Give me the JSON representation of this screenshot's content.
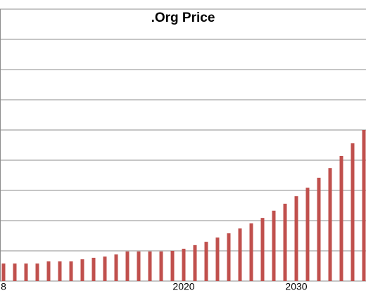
{
  "chart_data": {
    "type": "bar",
    "title": ".Org Price",
    "categories": [
      "8",
      null,
      null,
      null,
      null,
      null,
      null,
      null,
      null,
      null,
      null,
      null,
      null,
      null,
      null,
      null,
      "2020",
      null,
      null,
      null,
      null,
      null,
      null,
      null,
      null,
      null,
      "2030",
      null,
      null,
      null,
      null,
      null,
      null
    ],
    "values": [
      0.58,
      0.58,
      0.58,
      0.58,
      0.65,
      0.65,
      0.65,
      0.72,
      0.77,
      0.81,
      0.88,
      0.98,
      0.98,
      0.98,
      0.98,
      1.0,
      1.07,
      1.19,
      1.3,
      1.44,
      1.58,
      1.74,
      1.91,
      2.09,
      2.33,
      2.56,
      2.81,
      3.09,
      3.42,
      3.74,
      4.14,
      4.56,
      5.0
    ],
    "color": "#c0504d",
    "ylim": [
      0,
      9
    ],
    "yticks": [
      0,
      1,
      2,
      3,
      4,
      5,
      6,
      7,
      8,
      9
    ],
    "grid": true
  }
}
